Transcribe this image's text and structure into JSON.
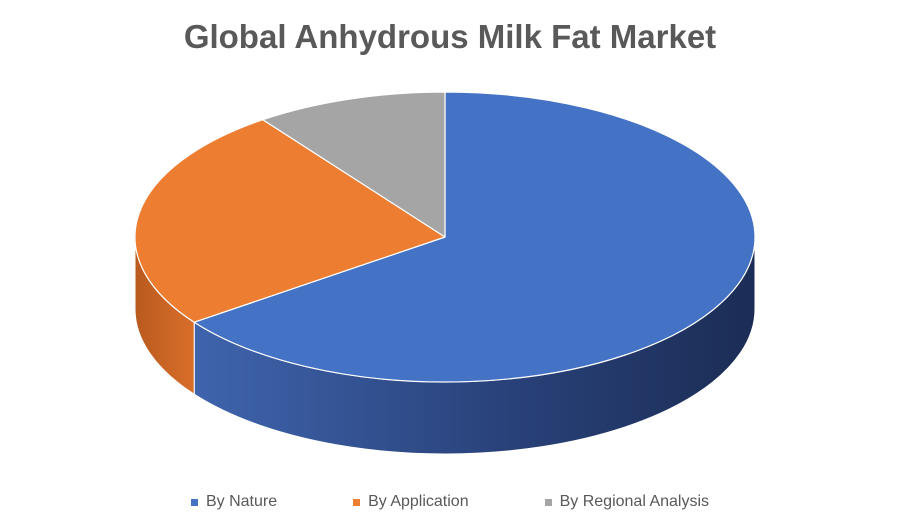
{
  "chart_data": {
    "type": "pie",
    "title": "Global Anhydrous Milk Fat Market",
    "categories": [
      "By Nature",
      "By Application",
      "By Regional Analysis"
    ],
    "values": [
      65,
      25,
      10
    ],
    "colors": [
      "#4472C4",
      "#ED7D31",
      "#A5A5A5"
    ],
    "legend_position": "bottom",
    "style": "3d-pie"
  }
}
